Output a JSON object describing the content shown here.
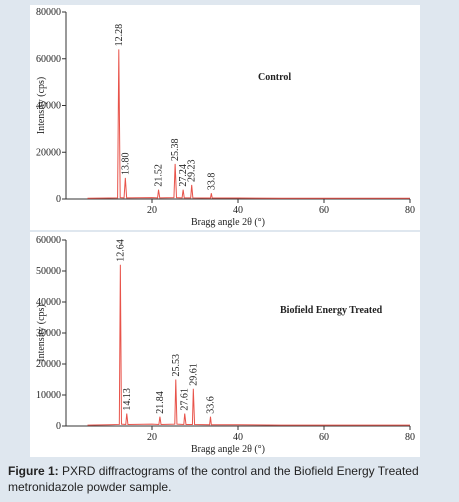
{
  "chart_data": [
    {
      "type": "line",
      "annotation": "Control",
      "xlabel": "Bragg angle 2θ (°)",
      "ylabel": "Intensity (cps)",
      "xlim": [
        0,
        80
      ],
      "xticks": [
        20,
        40,
        60,
        80
      ],
      "ylim": [
        0,
        80000
      ],
      "yticks": [
        0,
        20000,
        40000,
        60000,
        80000
      ],
      "color": "#e8534a",
      "x": [
        5,
        10,
        12.0,
        12.28,
        12.6,
        13.5,
        13.8,
        14.1,
        20,
        21.3,
        21.52,
        21.8,
        25.1,
        25.38,
        25.7,
        27.0,
        27.24,
        27.5,
        29.0,
        29.23,
        29.5,
        33.6,
        33.8,
        34.0,
        40,
        50,
        60,
        70,
        80
      ],
      "values": [
        300,
        400,
        500,
        64000,
        600,
        500,
        9000,
        500,
        600,
        500,
        4000,
        500,
        600,
        15000,
        600,
        500,
        4000,
        500,
        500,
        6000,
        500,
        400,
        2500,
        400,
        400,
        300,
        300,
        300,
        300
      ],
      "peaks": [
        {
          "value": 12.28,
          "label": "12.28"
        },
        {
          "value": 13.8,
          "label": "13.80"
        },
        {
          "value": 21.52,
          "label": "21.52"
        },
        {
          "value": 25.38,
          "label": "25.38"
        },
        {
          "value": 27.24,
          "label": "27.24"
        },
        {
          "value": 29.23,
          "label": "29.23"
        },
        {
          "value": 33.8,
          "label": "33.8"
        }
      ],
      "peak_heights": [
        64000,
        9000,
        4000,
        15000,
        4000,
        6000,
        2500
      ]
    },
    {
      "type": "line",
      "annotation": "Biofield Energy Treated",
      "xlabel": "Bragg angle 2θ (°)",
      "ylabel": "Intensity (cps)",
      "xlim": [
        0,
        80
      ],
      "xticks": [
        20,
        40,
        60,
        80
      ],
      "ylim": [
        0,
        60000
      ],
      "yticks": [
        0,
        10000,
        20000,
        30000,
        40000,
        50000,
        60000
      ],
      "color": "#e8534a",
      "x": [
        5,
        10,
        12.4,
        12.64,
        12.9,
        13.9,
        14.13,
        14.4,
        20,
        21.6,
        21.84,
        22.1,
        25.3,
        25.53,
        25.8,
        27.4,
        27.61,
        27.9,
        29.4,
        29.61,
        29.9,
        33.4,
        33.6,
        33.8,
        40,
        50,
        60,
        70,
        80
      ],
      "values": [
        300,
        400,
        500,
        52000,
        600,
        500,
        4000,
        500,
        600,
        500,
        3000,
        500,
        600,
        15000,
        600,
        500,
        4000,
        500,
        500,
        12000,
        500,
        400,
        3000,
        400,
        400,
        300,
        300,
        300,
        300
      ],
      "peaks": [
        {
          "value": 12.64,
          "label": "12.64"
        },
        {
          "value": 14.13,
          "label": "14.13"
        },
        {
          "value": 21.84,
          "label": "21.84"
        },
        {
          "value": 25.53,
          "label": "25.53"
        },
        {
          "value": 27.61,
          "label": "27.61"
        },
        {
          "value": 29.61,
          "label": "29.61"
        },
        {
          "value": 33.6,
          "label": "33.6"
        }
      ],
      "peak_heights": [
        52000,
        4000,
        3000,
        15000,
        4000,
        12000,
        3000
      ]
    }
  ],
  "caption": {
    "label": "Figure 1:",
    "text": "PXRD diffractograms of the control and the Biofield Energy Treated metronidazole powder sample."
  }
}
